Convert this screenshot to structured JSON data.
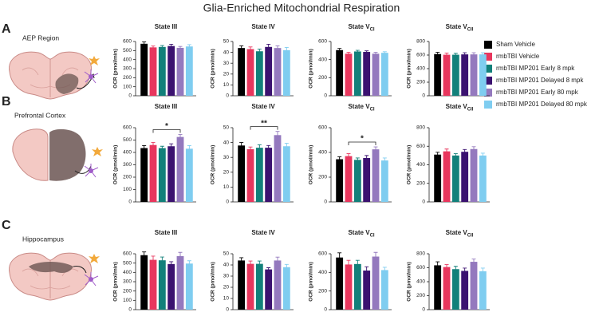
{
  "title": "Glia-Enriched Mitochondrial Respiration",
  "panels": [
    {
      "letter": "A",
      "region": "AEP Region"
    },
    {
      "letter": "B",
      "region": "Prefrontal Cortex"
    },
    {
      "letter": "C",
      "region": "Hippocampus"
    }
  ],
  "legend": [
    {
      "name": "Sham Vehicle",
      "color": "#000000"
    },
    {
      "name": "rmbTBI Vehicle",
      "color": "#e8365d"
    },
    {
      "name": "rmbTBI MP201 Early 8 mpk",
      "color": "#12807a"
    },
    {
      "name": "rmbTBI MP201 Delayed 8 mpk",
      "color": "#3b1270"
    },
    {
      "name": "rmbTBI MP201 Early 80 mpk",
      "color": "#9479be"
    },
    {
      "name": "rmbTBI MP201 Delayed 80 mpk",
      "color": "#7fcdf0"
    }
  ],
  "chart_data": [
    {
      "type": "bar",
      "title": "State III",
      "ylabel": "OCR (pmol/min)",
      "values": [
        575,
        535,
        540,
        550,
        530,
        545
      ],
      "errors": [
        20,
        15,
        15,
        20,
        15,
        20
      ],
      "ylim": [
        0,
        600
      ],
      "yticks": [
        0,
        100,
        200,
        300,
        400,
        500,
        600
      ]
    },
    {
      "type": "bar",
      "title": "State IV",
      "ylabel": "OCR (pmol/min)",
      "values": [
        44,
        43,
        41,
        45,
        44,
        42
      ],
      "errors": [
        2,
        2,
        2,
        2.5,
        2,
        2.5
      ],
      "ylim": [
        0,
        50
      ],
      "yticks": [
        0,
        10,
        20,
        30,
        40,
        50
      ]
    },
    {
      "type": "bar",
      "title": "State V",
      "title_sub": "CI",
      "ylabel": "OCR (pmol/min)",
      "values": [
        505,
        465,
        490,
        485,
        465,
        475
      ],
      "errors": [
        18,
        15,
        12,
        12,
        15,
        12
      ],
      "ylim": [
        0,
        600
      ],
      "yticks": [
        0,
        200,
        400,
        600
      ]
    },
    {
      "type": "bar",
      "title": "State V",
      "title_sub": "CII",
      "ylabel": "OCR (pmol/min)",
      "values": [
        615,
        605,
        605,
        610,
        610,
        610
      ],
      "errors": [
        25,
        25,
        20,
        25,
        25,
        25
      ],
      "ylim": [
        0,
        800
      ],
      "yticks": [
        0,
        200,
        400,
        600,
        800
      ]
    },
    {
      "type": "bar",
      "title": "State III",
      "ylabel": "OCR (pmol/min)",
      "values": [
        435,
        460,
        435,
        450,
        525,
        430
      ],
      "errors": [
        20,
        20,
        15,
        20,
        20,
        25
      ],
      "ylim": [
        0,
        600
      ],
      "yticks": [
        0,
        100,
        200,
        300,
        400,
        500,
        600
      ],
      "annotations": [
        {
          "text": "*",
          "from": 1,
          "to": 4
        }
      ]
    },
    {
      "type": "bar",
      "title": "State IV",
      "ylabel": "OCR (pmol/min)",
      "values": [
        38,
        35.5,
        36.5,
        36.5,
        45,
        37.5
      ],
      "errors": [
        2,
        1.5,
        2,
        1.5,
        2.5,
        2
      ],
      "ylim": [
        0,
        50
      ],
      "yticks": [
        0,
        10,
        20,
        30,
        40,
        50
      ],
      "annotations": [
        {
          "text": "**",
          "from": 1,
          "to": 4
        }
      ]
    },
    {
      "type": "bar",
      "title": "State V",
      "title_sub": "CI",
      "ylabel": "OCR (pmol/min)",
      "values": [
        345,
        370,
        340,
        355,
        425,
        335
      ],
      "errors": [
        20,
        20,
        15,
        20,
        20,
        20
      ],
      "ylim": [
        0,
        600
      ],
      "yticks": [
        0,
        200,
        400,
        600
      ],
      "annotations": [
        {
          "text": "*",
          "from": 1,
          "to": 4
        }
      ]
    },
    {
      "type": "bar",
      "title": "State V",
      "title_sub": "CII",
      "ylabel": "OCR (pmol/min)",
      "values": [
        510,
        545,
        500,
        540,
        570,
        500
      ],
      "errors": [
        25,
        25,
        20,
        25,
        25,
        25
      ],
      "ylim": [
        0,
        800
      ],
      "yticks": [
        0,
        200,
        400,
        600,
        800
      ]
    },
    {
      "type": "bar",
      "title": "State III",
      "ylabel": "OCR (pmol/min)",
      "values": [
        585,
        535,
        530,
        490,
        575,
        495
      ],
      "errors": [
        35,
        40,
        35,
        25,
        40,
        30
      ],
      "ylim": [
        0,
        600
      ],
      "yticks": [
        0,
        100,
        200,
        300,
        400,
        500,
        600
      ]
    },
    {
      "type": "bar",
      "title": "State IV",
      "ylabel": "OCR (pmol/min)",
      "values": [
        44,
        41,
        41,
        36,
        44,
        38
      ],
      "errors": [
        2.5,
        2.5,
        2.5,
        1.5,
        3,
        2.5
      ],
      "ylim": [
        0,
        50
      ],
      "yticks": [
        0,
        10,
        20,
        30,
        40,
        50
      ]
    },
    {
      "type": "bar",
      "title": "State V",
      "title_sub": "CI",
      "ylabel": "OCR (pmol/min)",
      "values": [
        560,
        485,
        490,
        420,
        570,
        425
      ],
      "errors": [
        50,
        45,
        40,
        40,
        45,
        30
      ],
      "ylim": [
        0,
        600
      ],
      "yticks": [
        0,
        200,
        400,
        600
      ]
    },
    {
      "type": "bar",
      "title": "State V",
      "title_sub": "CII",
      "ylabel": "OCR (pmol/min)",
      "values": [
        635,
        610,
        580,
        555,
        685,
        550
      ],
      "errors": [
        50,
        35,
        40,
        40,
        40,
        45
      ],
      "ylim": [
        0,
        800
      ],
      "yticks": [
        0,
        200,
        400,
        600,
        800
      ]
    }
  ]
}
